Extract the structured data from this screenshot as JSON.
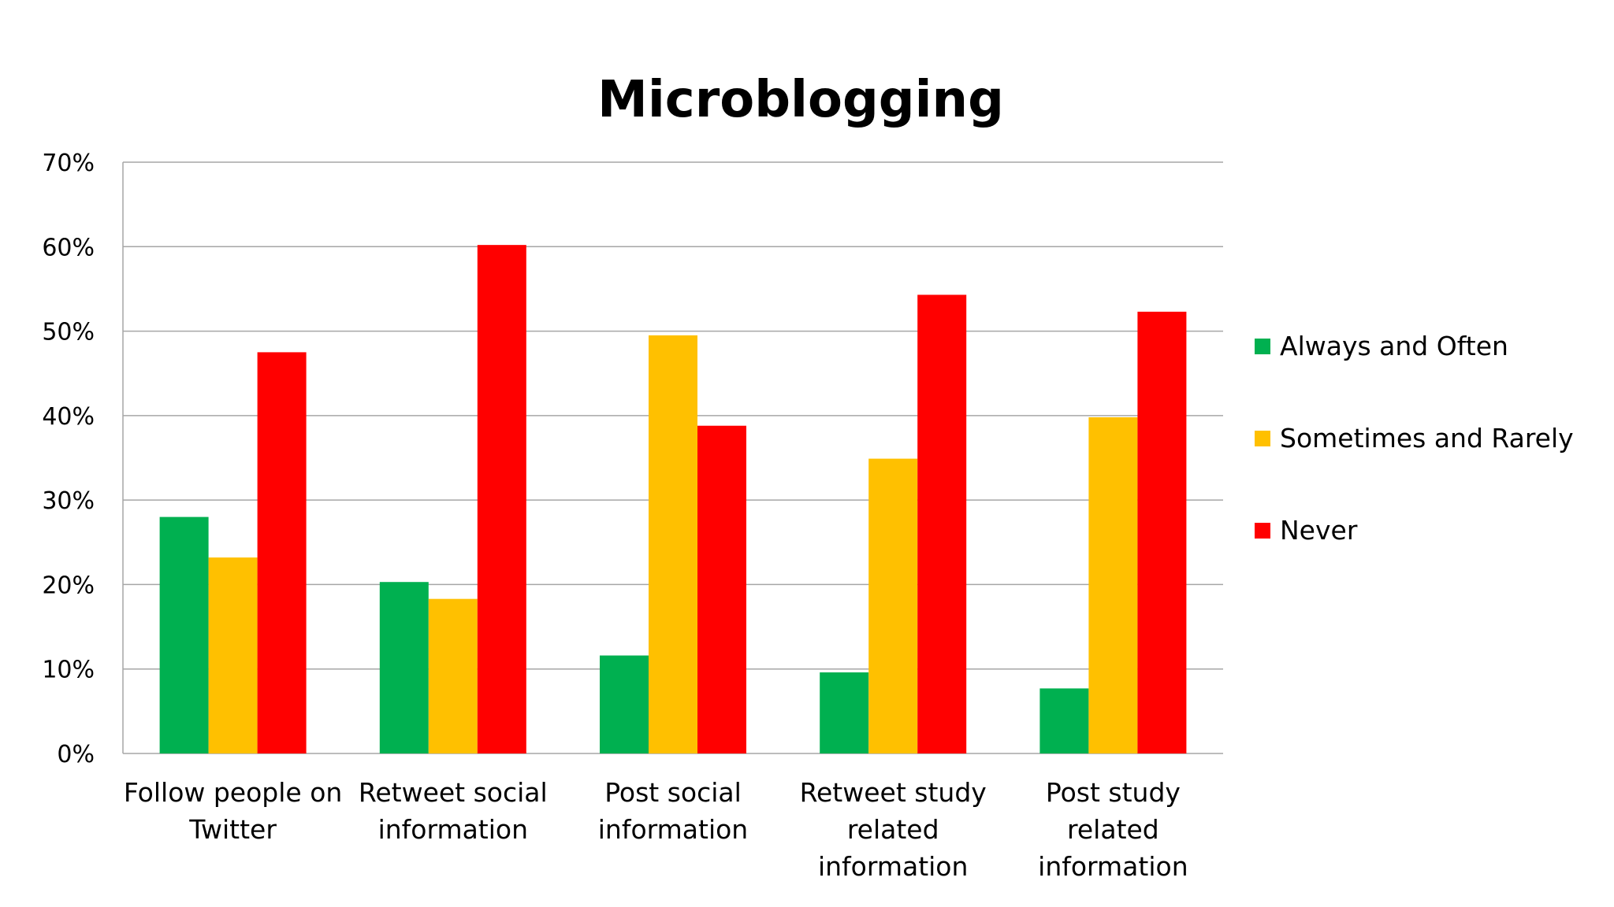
{
  "chart_data": {
    "type": "bar",
    "title": "Microblogging",
    "xlabel": "",
    "ylabel": "",
    "ylim": [
      0,
      70
    ],
    "y_tick_format": "percent",
    "y_ticks": [
      "0%",
      "10%",
      "20%",
      "30%",
      "40%",
      "50%",
      "60%",
      "70%"
    ],
    "grid": true,
    "legend_position": "right",
    "categories": [
      [
        "Follow people on",
        "Twitter"
      ],
      [
        "Retweet  social",
        "information"
      ],
      [
        "Post social",
        "information"
      ],
      [
        "Retweet study",
        "related",
        "information"
      ],
      [
        "Post study",
        "related",
        "information"
      ]
    ],
    "series": [
      {
        "name": "Always and Often",
        "color": "#00B050",
        "values": [
          28,
          20.3,
          11.6,
          9.6,
          7.7
        ]
      },
      {
        "name": "Sometimes and Rarely",
        "color": "#FFC000",
        "values": [
          23.2,
          18.3,
          49.5,
          34.9,
          39.8
        ]
      },
      {
        "name": "Never",
        "color": "#FF0000",
        "values": [
          47.5,
          60.2,
          38.8,
          54.3,
          52.3
        ]
      }
    ]
  }
}
